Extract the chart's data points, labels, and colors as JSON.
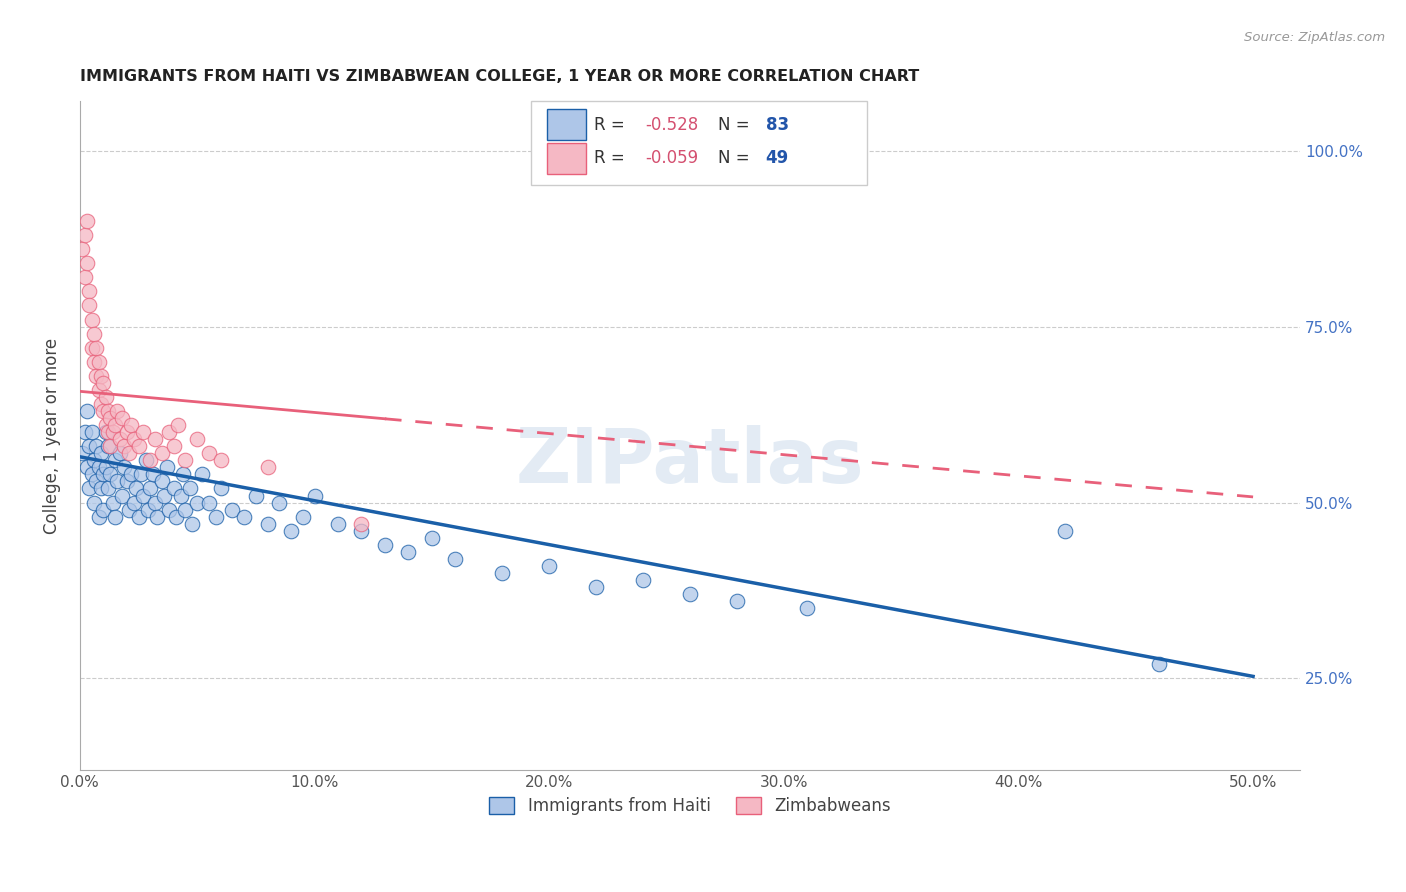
{
  "title": "IMMIGRANTS FROM HAITI VS ZIMBABWEAN COLLEGE, 1 YEAR OR MORE CORRELATION CHART",
  "source": "Source: ZipAtlas.com",
  "ylabel": "College, 1 year or more",
  "x_tick_labels": [
    "0.0%",
    "10.0%",
    "20.0%",
    "30.0%",
    "40.0%",
    "50.0%"
  ],
  "x_tick_values": [
    0.0,
    0.1,
    0.2,
    0.3,
    0.4,
    0.5
  ],
  "y_tick_labels_right": [
    "25.0%",
    "50.0%",
    "75.0%",
    "100.0%"
  ],
  "y_tick_values": [
    0.25,
    0.5,
    0.75,
    1.0
  ],
  "xlim": [
    0.0,
    0.52
  ],
  "ylim": [
    0.12,
    1.07
  ],
  "legend_R_haiti": "-0.528",
  "legend_N_haiti": "83",
  "legend_R_zimb": "-0.059",
  "legend_N_zimb": "49",
  "legend_label_haiti": "Immigrants from Haiti",
  "legend_label_zimb": "Zimbabweans",
  "haiti_color": "#aec6e8",
  "haiti_line_color": "#1a5fa8",
  "zimb_color": "#f5b8c4",
  "zimb_line_color": "#e8607a",
  "watermark": "ZIPatlas",
  "haiti_trend_x0": 0.0,
  "haiti_trend_y0": 0.565,
  "haiti_trend_x1": 0.5,
  "haiti_trend_y1": 0.253,
  "zimb_trend_x0": 0.0,
  "zimb_trend_y0": 0.658,
  "zimb_trend_x1": 0.5,
  "zimb_trend_y1": 0.508,
  "haiti_x": [
    0.001,
    0.002,
    0.003,
    0.003,
    0.004,
    0.004,
    0.005,
    0.005,
    0.006,
    0.006,
    0.007,
    0.007,
    0.008,
    0.008,
    0.009,
    0.009,
    0.01,
    0.01,
    0.011,
    0.011,
    0.012,
    0.012,
    0.013,
    0.014,
    0.015,
    0.015,
    0.016,
    0.017,
    0.018,
    0.019,
    0.02,
    0.021,
    0.022,
    0.023,
    0.024,
    0.025,
    0.026,
    0.027,
    0.028,
    0.029,
    0.03,
    0.031,
    0.032,
    0.033,
    0.035,
    0.036,
    0.037,
    0.038,
    0.04,
    0.041,
    0.043,
    0.044,
    0.045,
    0.047,
    0.048,
    0.05,
    0.052,
    0.055,
    0.058,
    0.06,
    0.065,
    0.07,
    0.075,
    0.08,
    0.085,
    0.09,
    0.095,
    0.1,
    0.11,
    0.12,
    0.13,
    0.14,
    0.15,
    0.16,
    0.18,
    0.2,
    0.22,
    0.24,
    0.26,
    0.28,
    0.31,
    0.42,
    0.46
  ],
  "haiti_y": [
    0.57,
    0.6,
    0.55,
    0.63,
    0.58,
    0.52,
    0.54,
    0.6,
    0.56,
    0.5,
    0.53,
    0.58,
    0.55,
    0.48,
    0.52,
    0.57,
    0.54,
    0.49,
    0.55,
    0.6,
    0.52,
    0.58,
    0.54,
    0.5,
    0.56,
    0.48,
    0.53,
    0.57,
    0.51,
    0.55,
    0.53,
    0.49,
    0.54,
    0.5,
    0.52,
    0.48,
    0.54,
    0.51,
    0.56,
    0.49,
    0.52,
    0.54,
    0.5,
    0.48,
    0.53,
    0.51,
    0.55,
    0.49,
    0.52,
    0.48,
    0.51,
    0.54,
    0.49,
    0.52,
    0.47,
    0.5,
    0.54,
    0.5,
    0.48,
    0.52,
    0.49,
    0.48,
    0.51,
    0.47,
    0.5,
    0.46,
    0.48,
    0.51,
    0.47,
    0.46,
    0.44,
    0.43,
    0.45,
    0.42,
    0.4,
    0.41,
    0.38,
    0.39,
    0.37,
    0.36,
    0.35,
    0.46,
    0.27
  ],
  "zimb_x": [
    0.001,
    0.002,
    0.002,
    0.003,
    0.003,
    0.004,
    0.004,
    0.005,
    0.005,
    0.006,
    0.006,
    0.007,
    0.007,
    0.008,
    0.008,
    0.009,
    0.009,
    0.01,
    0.01,
    0.011,
    0.011,
    0.012,
    0.012,
    0.013,
    0.013,
    0.014,
    0.015,
    0.016,
    0.017,
    0.018,
    0.019,
    0.02,
    0.021,
    0.022,
    0.023,
    0.025,
    0.027,
    0.03,
    0.032,
    0.035,
    0.038,
    0.04,
    0.042,
    0.045,
    0.05,
    0.055,
    0.06,
    0.08,
    0.12
  ],
  "zimb_y": [
    0.86,
    0.88,
    0.82,
    0.84,
    0.9,
    0.8,
    0.78,
    0.76,
    0.72,
    0.74,
    0.7,
    0.68,
    0.72,
    0.66,
    0.7,
    0.64,
    0.68,
    0.63,
    0.67,
    0.61,
    0.65,
    0.6,
    0.63,
    0.58,
    0.62,
    0.6,
    0.61,
    0.63,
    0.59,
    0.62,
    0.58,
    0.6,
    0.57,
    0.61,
    0.59,
    0.58,
    0.6,
    0.56,
    0.59,
    0.57,
    0.6,
    0.58,
    0.61,
    0.56,
    0.59,
    0.57,
    0.56,
    0.55,
    0.47
  ]
}
